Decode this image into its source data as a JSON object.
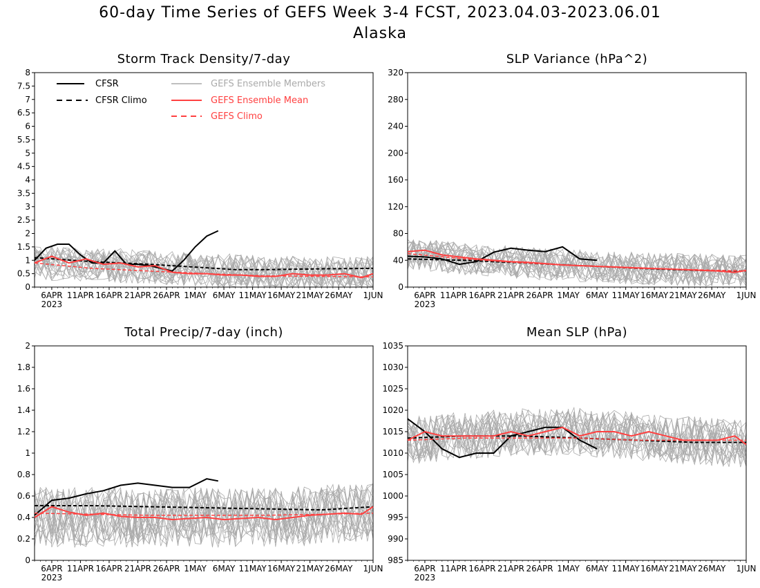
{
  "title_line1": "60-day Time Series of GEFS Week 3-4 FCST, 2023.04.03-2023.06.01",
  "title_line2": "Alaska",
  "x_axis": {
    "tick_labels": [
      "6APR",
      "11APR",
      "16APR",
      "21APR",
      "26APR",
      "1MAY",
      "6MAY",
      "11MAY",
      "16MAY",
      "21MAY",
      "26MAY",
      "1JUN"
    ],
    "tick_days": [
      3,
      8,
      13,
      18,
      23,
      28,
      33,
      38,
      43,
      48,
      53,
      59
    ],
    "year_label": "2023",
    "range_days": [
      0,
      59
    ]
  },
  "legend": {
    "cfsr": "CFSR",
    "cfsr_climo": "CFSR Climo",
    "members": "GEFS Ensemble Members",
    "mean": "GEFS Ensemble Mean",
    "gefs_climo": "GEFS Climo"
  },
  "colors": {
    "cfsr": "#000000",
    "members": "#aaaaaa",
    "mean": "#ff4040",
    "gefs_climo": "#ff4040"
  },
  "chart_data": [
    {
      "type": "line",
      "title": "Storm Track Density/7-day",
      "ylim": [
        0,
        8
      ],
      "yticks": [
        0,
        0.5,
        1,
        1.5,
        2,
        2.5,
        3,
        3.5,
        4,
        4.5,
        5,
        5.5,
        6,
        6.5,
        7,
        7.5,
        8
      ],
      "legend_location": "top-left",
      "series": [
        {
          "name": "CFSR",
          "x": [
            0,
            2,
            4,
            6,
            8,
            10,
            12,
            14,
            16,
            18,
            20,
            22,
            24,
            26,
            28,
            30,
            32
          ],
          "y": [
            1.0,
            1.45,
            1.6,
            1.6,
            1.2,
            0.9,
            0.9,
            1.35,
            0.85,
            0.85,
            0.8,
            0.7,
            0.6,
            1.0,
            1.5,
            1.9,
            2.1
          ]
        },
        {
          "name": "CFSR Climo",
          "x": [
            0,
            10,
            20,
            30,
            35,
            40,
            50,
            59
          ],
          "y": [
            1.1,
            0.95,
            0.85,
            0.72,
            0.65,
            0.65,
            0.68,
            0.7
          ]
        },
        {
          "name": "GEFS Ensemble Mean",
          "x": [
            0,
            3,
            6,
            9,
            12,
            15,
            18,
            21,
            24,
            27,
            30,
            33,
            36,
            39,
            42,
            45,
            48,
            51,
            54,
            57,
            59
          ],
          "y": [
            0.9,
            1.15,
            0.9,
            1.05,
            0.85,
            0.9,
            0.75,
            0.8,
            0.55,
            0.5,
            0.5,
            0.45,
            0.45,
            0.4,
            0.4,
            0.5,
            0.45,
            0.45,
            0.5,
            0.35,
            0.5
          ]
        },
        {
          "name": "GEFS Climo",
          "x": [
            0,
            10,
            20,
            30,
            40,
            50,
            59
          ],
          "y": [
            0.9,
            0.7,
            0.6,
            0.5,
            0.42,
            0.4,
            0.38
          ]
        }
      ],
      "members_band": {
        "center": [
          0.9,
          0.85,
          0.75,
          0.65,
          0.55,
          0.5,
          0.5
        ],
        "spread": 0.8,
        "count": 20
      }
    },
    {
      "type": "line",
      "title": "SLP Variance (hPa^2)",
      "ylim": [
        0,
        320
      ],
      "yticks": [
        0,
        40,
        80,
        120,
        160,
        200,
        240,
        280,
        320
      ],
      "series": [
        {
          "name": "CFSR",
          "x": [
            0,
            3,
            6,
            9,
            12,
            15,
            18,
            21,
            24,
            27,
            30,
            33
          ],
          "y": [
            46,
            45,
            42,
            34,
            38,
            52,
            58,
            55,
            53,
            60,
            42,
            40
          ]
        },
        {
          "name": "CFSR Climo",
          "x": [
            0,
            10,
            20,
            30,
            40,
            50,
            59
          ],
          "y": [
            42,
            40,
            36,
            32,
            28,
            25,
            24
          ]
        },
        {
          "name": "GEFS Ensemble Mean",
          "x": [
            0,
            3,
            6,
            9,
            12,
            15,
            18,
            21,
            24,
            27,
            30,
            33,
            36,
            39,
            42,
            45,
            48,
            51,
            54,
            57,
            59
          ],
          "y": [
            53,
            55,
            48,
            45,
            42,
            40,
            38,
            37,
            35,
            33,
            32,
            31,
            30,
            29,
            28,
            27,
            26,
            25,
            24,
            22,
            25
          ]
        },
        {
          "name": "GEFS Climo",
          "x": [
            0,
            10,
            20,
            30,
            40,
            50,
            59
          ],
          "y": [
            50,
            42,
            36,
            32,
            28,
            26,
            24
          ]
        }
      ],
      "members_band": {
        "center": [
          50,
          42,
          36,
          32,
          28,
          26,
          24
        ],
        "spread": 30,
        "count": 20
      }
    },
    {
      "type": "line",
      "title": "Total Precip/7-day (inch)",
      "ylim": [
        0,
        2
      ],
      "yticks": [
        0,
        0.2,
        0.4,
        0.6,
        0.8,
        1,
        1.2,
        1.4,
        1.6,
        1.8,
        2
      ],
      "series": [
        {
          "name": "CFSR",
          "x": [
            0,
            3,
            6,
            9,
            12,
            15,
            18,
            21,
            24,
            27,
            30,
            32
          ],
          "y": [
            0.42,
            0.56,
            0.58,
            0.62,
            0.65,
            0.7,
            0.72,
            0.7,
            0.68,
            0.68,
            0.76,
            0.74
          ]
        },
        {
          "name": "CFSR Climo",
          "x": [
            0,
            10,
            20,
            30,
            40,
            50,
            59
          ],
          "y": [
            0.51,
            0.51,
            0.5,
            0.49,
            0.48,
            0.47,
            0.5
          ]
        },
        {
          "name": "GEFS Ensemble Mean",
          "x": [
            0,
            3,
            6,
            9,
            12,
            15,
            18,
            21,
            24,
            27,
            30,
            33,
            36,
            39,
            42,
            45,
            48,
            51,
            54,
            57,
            59
          ],
          "y": [
            0.4,
            0.5,
            0.45,
            0.42,
            0.44,
            0.41,
            0.4,
            0.4,
            0.38,
            0.39,
            0.4,
            0.38,
            0.39,
            0.4,
            0.38,
            0.4,
            0.42,
            0.43,
            0.44,
            0.43,
            0.5
          ]
        },
        {
          "name": "GEFS Climo",
          "x": [
            0,
            10,
            20,
            30,
            40,
            50,
            59
          ],
          "y": [
            0.44,
            0.43,
            0.42,
            0.42,
            0.42,
            0.43,
            0.44
          ]
        }
      ],
      "members_band": {
        "center": [
          0.4,
          0.4,
          0.4,
          0.4,
          0.4,
          0.42,
          0.45
        ],
        "spread": 0.35,
        "count": 20
      }
    },
    {
      "type": "line",
      "title": "Mean SLP (hPa)",
      "ylim": [
        985,
        1035
      ],
      "yticks": [
        985,
        990,
        995,
        1000,
        1005,
        1010,
        1015,
        1020,
        1025,
        1030,
        1035
      ],
      "series": [
        {
          "name": "CFSR",
          "x": [
            0,
            3,
            6,
            9,
            12,
            15,
            18,
            21,
            24,
            27,
            30,
            33
          ],
          "y": [
            1018,
            1015,
            1011,
            1009,
            1010,
            1010,
            1014,
            1015,
            1016,
            1016,
            1013,
            1011
          ]
        },
        {
          "name": "CFSR Climo",
          "x": [
            0,
            10,
            20,
            30,
            40,
            50,
            59
          ],
          "y": [
            1013.5,
            1014,
            1014,
            1013.5,
            1013,
            1012.5,
            1012.5
          ]
        },
        {
          "name": "GEFS Ensemble Mean",
          "x": [
            0,
            3,
            6,
            9,
            12,
            15,
            18,
            21,
            24,
            27,
            30,
            33,
            36,
            39,
            42,
            45,
            48,
            51,
            54,
            57,
            59
          ],
          "y": [
            1013,
            1015,
            1014,
            1014,
            1014,
            1014,
            1015,
            1014,
            1015,
            1016,
            1014,
            1015,
            1015,
            1014,
            1015,
            1014,
            1013,
            1013,
            1013,
            1014,
            1012
          ]
        },
        {
          "name": "GEFS Climo",
          "x": [
            0,
            10,
            20,
            30,
            40,
            50,
            59
          ],
          "y": [
            1013,
            1013.5,
            1013.5,
            1013.5,
            1013,
            1013,
            1013
          ]
        }
      ],
      "members_band": {
        "center": [
          1013,
          1014,
          1015,
          1015,
          1014,
          1013,
          1012
        ],
        "spread": 7,
        "count": 20
      }
    }
  ]
}
